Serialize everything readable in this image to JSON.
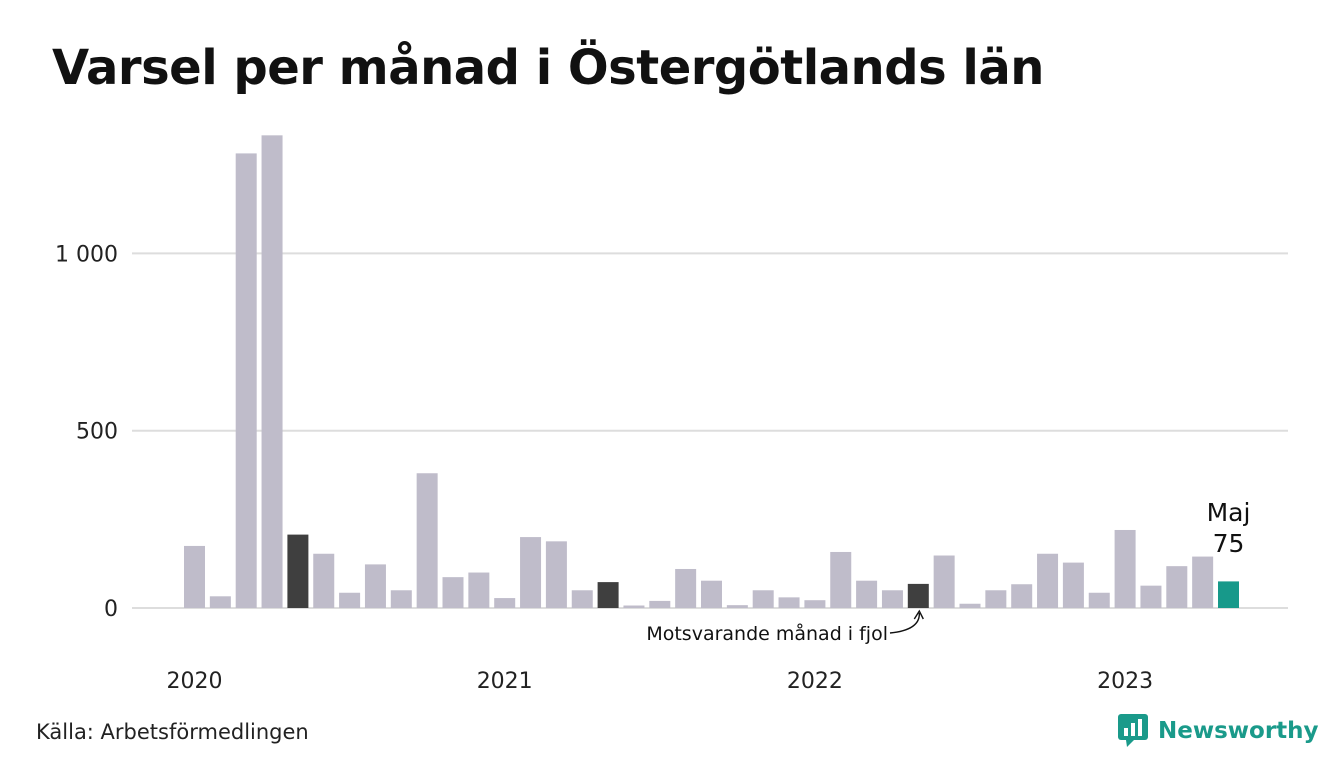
{
  "title": "Varsel per månad i Östergötlands län",
  "source": "Källa: Arbetsförmedlingen",
  "brand": {
    "name": "Newsworthy",
    "icon": "newsworthy-logo-icon"
  },
  "colors": {
    "default_bar": "#bfbcca",
    "highlight_bar": "#3f3f3f",
    "current_bar": "#17998a",
    "grid": "#dddddd",
    "brand": "#1a9a8a"
  },
  "chart_data": {
    "type": "bar",
    "title": "Varsel per månad i Östergötlands län",
    "xlabel": "",
    "ylabel": "",
    "ylim": [
      0,
      1400
    ],
    "y_ticks": [
      {
        "value": 0,
        "label": "0"
      },
      {
        "value": 500,
        "label": "500"
      },
      {
        "value": 1000,
        "label": "1 000"
      }
    ],
    "x_tick_labels": [
      {
        "category": "2020-01",
        "label": "2020"
      },
      {
        "category": "2021-01",
        "label": "2021"
      },
      {
        "category": "2022-01",
        "label": "2022"
      },
      {
        "category": "2023-01",
        "label": "2023"
      }
    ],
    "categories": [
      "2020-01",
      "2020-02",
      "2020-03",
      "2020-04",
      "2020-05",
      "2020-06",
      "2020-07",
      "2020-08",
      "2020-09",
      "2020-10",
      "2020-11",
      "2020-12",
      "2021-01",
      "2021-02",
      "2021-03",
      "2021-04",
      "2021-05",
      "2021-06",
      "2021-07",
      "2021-08",
      "2021-09",
      "2021-10",
      "2021-11",
      "2021-12",
      "2022-01",
      "2022-02",
      "2022-03",
      "2022-04",
      "2022-05",
      "2022-06",
      "2022-07",
      "2022-08",
      "2022-09",
      "2022-10",
      "2022-11",
      "2022-12",
      "2023-01",
      "2023-02",
      "2023-03",
      "2023-04",
      "2023-05"
    ],
    "values": [
      175,
      33,
      1282,
      1333,
      207,
      153,
      43,
      123,
      50,
      380,
      87,
      100,
      28,
      200,
      188,
      50,
      73,
      7,
      20,
      110,
      77,
      8,
      50,
      30,
      22,
      158,
      77,
      50,
      68,
      148,
      12,
      50,
      67,
      153,
      128,
      43,
      220,
      63,
      118,
      145,
      75
    ],
    "highlighted": [
      "2020-05",
      "2021-05",
      "2022-05"
    ],
    "current": "2023-05",
    "annotations": {
      "current_label": "Maj",
      "current_value": "75",
      "comparison_note": "Motsvarande månad i fjol"
    },
    "grid": true,
    "legend": "none"
  }
}
